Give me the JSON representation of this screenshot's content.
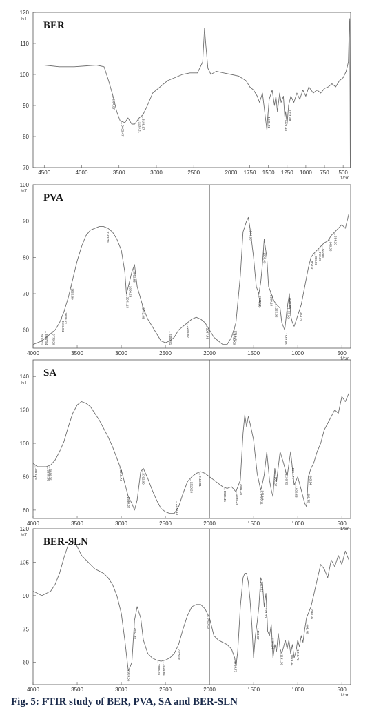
{
  "caption": "Fig. 5: FTIR study of BER, PVA, SA and BER-SLN",
  "chart_data": [
    {
      "type": "line",
      "title": "BER",
      "ylabel": "%T",
      "xunit": "1/cm",
      "xlim": [
        4650,
        400
      ],
      "ylim": [
        70,
        120
      ],
      "xticks": [
        4500,
        4000,
        3500,
        3000,
        2500,
        2000,
        1750,
        1500,
        1250,
        1000,
        750,
        500
      ],
      "yticks": [
        70,
        80,
        90,
        100,
        110,
        120
      ],
      "x": [
        4650,
        4500,
        4300,
        4100,
        3800,
        3700,
        3640,
        3580,
        3530,
        3484,
        3420,
        3380,
        3330,
        3290,
        3230,
        3180,
        3120,
        3050,
        2950,
        2850,
        2750,
        2650,
        2550,
        2450,
        2380,
        2355,
        2340,
        2310,
        2270,
        2200,
        2100,
        2000,
        1900,
        1800,
        1750,
        1700,
        1650,
        1620,
        1580,
        1540,
        1520,
        1510,
        1490,
        1450,
        1420,
        1400,
        1380,
        1350,
        1330,
        1300,
        1280,
        1270,
        1250,
        1231,
        1200,
        1160,
        1120,
        1080,
        1040,
        1000,
        960,
        900,
        850,
        800,
        750,
        700,
        650,
        600,
        550,
        500,
        460,
        430,
        420,
        412,
        405
      ],
      "values": [
        103,
        103,
        102.5,
        102.5,
        103,
        102.5,
        98,
        93,
        88,
        85,
        84.5,
        86,
        84,
        84,
        86,
        87,
        90,
        94,
        96,
        98,
        99,
        100,
        100.5,
        100.5,
        104,
        115,
        110,
        102,
        100,
        101,
        100.5,
        100,
        99.5,
        98,
        96,
        95,
        93,
        91,
        94,
        86,
        82,
        86,
        92,
        95,
        90,
        93,
        88,
        94,
        91,
        93,
        86,
        88,
        84,
        90,
        93,
        91,
        94,
        92,
        95,
        93,
        96,
        94,
        95,
        94,
        95.5,
        96,
        97,
        96,
        98,
        99,
        101,
        104,
        114,
        118,
        70
      ],
      "peak_labels": [
        {
          "x": 3584.87,
          "label": "3584.87"
        },
        {
          "x": 3465.47,
          "label": "3465.47"
        },
        {
          "x": 3233.81,
          "label": "3233.81"
        },
        {
          "x": 3188.17,
          "label": "3188.17"
        },
        {
          "x": 1505.21,
          "label": "1505.21"
        },
        {
          "x": 1277.45,
          "label": "1277.45"
        },
        {
          "x": 1231.68,
          "label": "1231.68"
        }
      ],
      "vline": 2000
    },
    {
      "type": "line",
      "title": "PVA",
      "ylabel": "%T",
      "xunit": "1/cm",
      "xlim": [
        4000,
        400
      ],
      "ylim": [
        55,
        100
      ],
      "xticks": [
        4000,
        3500,
        3000,
        2500,
        2000,
        1500,
        1000,
        500
      ],
      "yticks": [
        60,
        70,
        80,
        90,
        100
      ],
      "x": [
        4000,
        3950,
        3900,
        3850,
        3800,
        3750,
        3700,
        3650,
        3600,
        3550,
        3500,
        3450,
        3400,
        3350,
        3300,
        3250,
        3200,
        3150,
        3100,
        3050,
        3000,
        2960,
        2942,
        2920,
        2880,
        2850,
        2820,
        2750,
        2700,
        2650,
        2600,
        2550,
        2500,
        2450,
        2400,
        2350,
        2300,
        2250,
        2200,
        2150,
        2100,
        2050,
        2000,
        1950,
        1900,
        1850,
        1800,
        1750,
        1700,
        1650,
        1620,
        1580,
        1560,
        1540,
        1500,
        1470,
        1440,
        1420,
        1400,
        1380,
        1350,
        1330,
        1300,
        1270,
        1240,
        1200,
        1180,
        1147,
        1120,
        1094,
        1080,
        1060,
        1040,
        1000,
        960,
        920,
        880,
        850,
        820,
        780,
        740,
        700,
        660,
        620,
        580,
        540,
        500,
        460,
        420
      ],
      "values": [
        56,
        56.5,
        57,
        58,
        59,
        60,
        62,
        65,
        69,
        74,
        79,
        83,
        86,
        87.5,
        88,
        88.5,
        88.5,
        88,
        87,
        85,
        82,
        76,
        70,
        72,
        76,
        78,
        72,
        66,
        63,
        61,
        59,
        57,
        56.5,
        57,
        58,
        60,
        61,
        62,
        63,
        63.5,
        63,
        62,
        60,
        58,
        57,
        56,
        56,
        58,
        62,
        75,
        87,
        90,
        91,
        88,
        80,
        72,
        70,
        73,
        78,
        85,
        80,
        72,
        70,
        68,
        67,
        66,
        62,
        60,
        66,
        70,
        64,
        62,
        61,
        64,
        67,
        72,
        77,
        80,
        81,
        82,
        83,
        84,
        84.5,
        86,
        87,
        88,
        89,
        88,
        92
      ],
      "peak_labels": [
        {
          "x": 3910.61,
          "label": "3910.61"
        },
        {
          "x": 3857.54,
          "label": "3857.54"
        },
        {
          "x": 3776.36,
          "label": "3776.36"
        },
        {
          "x": 3673.84,
          "label": "3673.84"
        },
        {
          "x": 3640.53,
          "label": "3640.53"
        },
        {
          "x": 3566.09,
          "label": "3566.09"
        },
        {
          "x": 3163.26,
          "label": "3163.26"
        },
        {
          "x": 2941.13,
          "label": "2941.13"
        },
        {
          "x": 2909.53,
          "label": "2909.53"
        },
        {
          "x": 2862.88,
          "label": "2862.88"
        },
        {
          "x": 2762.98,
          "label": "2762.98"
        },
        {
          "x": 2453.91,
          "label": "2453.91"
        },
        {
          "x": 2250.8,
          "label": "2250.80"
        },
        {
          "x": 2037.48,
          "label": "2037.48"
        },
        {
          "x": 1732.09,
          "label": "1732.09"
        },
        {
          "x": 1714.72,
          "label": "1714.72"
        },
        {
          "x": 1544.98,
          "label": "1544.98"
        },
        {
          "x": 1444.68,
          "label": "1444.68"
        },
        {
          "x": 1440.11,
          "label": "1440.11"
        },
        {
          "x": 1387.63,
          "label": "1387.63"
        },
        {
          "x": 1309.18,
          "label": "1309.18"
        },
        {
          "x": 1255.06,
          "label": "1255.06"
        },
        {
          "x": 1147.8,
          "label": "1147.80"
        },
        {
          "x": 1112.9,
          "label": "1112.90"
        },
        {
          "x": 1094.58,
          "label": "1094.58"
        },
        {
          "x": 974.29,
          "label": "974.29"
        },
        {
          "x": 850.91,
          "label": "850.91"
        },
        {
          "x": 806.86,
          "label": "806.86"
        },
        {
          "x": 760.09,
          "label": "760.09"
        },
        {
          "x": 720.58,
          "label": "720.58"
        },
        {
          "x": 640.08,
          "label": "640.08"
        },
        {
          "x": 584.29,
          "label": "584.29"
        }
      ],
      "vline": 2000
    },
    {
      "type": "line",
      "title": "SA",
      "ylabel": "%T",
      "xunit": "1/cm",
      "xlim": [
        4000,
        400
      ],
      "ylim": [
        55,
        150
      ],
      "xticks": [
        4000,
        3500,
        3000,
        2500,
        2000,
        1500,
        1000,
        500
      ],
      "yticks": [
        60,
        80,
        100,
        120,
        140
      ],
      "x": [
        4000,
        3950,
        3900,
        3850,
        3800,
        3750,
        3700,
        3650,
        3600,
        3550,
        3500,
        3450,
        3400,
        3350,
        3300,
        3250,
        3200,
        3150,
        3100,
        3050,
        3000,
        2960,
        2920,
        2880,
        2850,
        2820,
        2780,
        2750,
        2700,
        2650,
        2600,
        2550,
        2500,
        2450,
        2400,
        2350,
        2300,
        2250,
        2200,
        2150,
        2100,
        2050,
        2000,
        1950,
        1900,
        1850,
        1800,
        1750,
        1700,
        1650,
        1620,
        1600,
        1580,
        1560,
        1540,
        1500,
        1460,
        1420,
        1400,
        1380,
        1350,
        1320,
        1300,
        1280,
        1260,
        1240,
        1200,
        1160,
        1120,
        1080,
        1060,
        1040,
        1000,
        960,
        920,
        900,
        880,
        850,
        820,
        780,
        740,
        700,
        660,
        620,
        580,
        540,
        500,
        460,
        420
      ],
      "values": [
        88,
        86,
        86,
        86,
        87,
        90,
        95,
        101,
        110,
        118,
        123,
        125,
        124,
        122,
        118,
        114,
        109,
        104,
        98,
        91,
        84,
        76,
        68,
        64,
        60,
        66,
        83,
        85,
        79,
        72,
        66,
        61,
        59,
        58,
        58,
        62,
        70,
        77,
        80,
        82,
        83,
        82,
        80,
        78,
        76,
        74,
        73,
        74,
        71,
        78,
        106,
        117,
        110,
        116,
        112,
        102,
        82,
        72,
        76,
        81,
        95,
        78,
        72,
        68,
        85,
        77,
        95,
        88,
        80,
        95,
        85,
        75,
        80,
        72,
        64,
        62,
        80,
        85,
        88,
        95,
        100,
        108,
        112,
        116,
        120,
        118,
        128,
        125,
        130
      ],
      "peak_labels": [
        {
          "x": 3976.75,
          "label": "3976.75"
        },
        {
          "x": 3838.06,
          "label": "3838.06"
        },
        {
          "x": 3816.25,
          "label": "3816.25"
        },
        {
          "x": 3015.74,
          "label": "3015.74"
        },
        {
          "x": 2930.02,
          "label": "2930.02"
        },
        {
          "x": 2762.09,
          "label": "2762.09"
        },
        {
          "x": 2374.16,
          "label": "2374.16"
        },
        {
          "x": 2215.26,
          "label": "2215.26"
        },
        {
          "x": 2116.81,
          "label": "2116.81"
        },
        {
          "x": 1835.45,
          "label": "1835.45"
        },
        {
          "x": 1695.28,
          "label": "1695.28"
        },
        {
          "x": 1651.03,
          "label": "1651.03"
        },
        {
          "x": 1420.11,
          "label": "1420.11"
        },
        {
          "x": 1410.44,
          "label": "1410.44"
        },
        {
          "x": 1262.37,
          "label": "1262.37"
        },
        {
          "x": 1138.75,
          "label": "1138.75"
        },
        {
          "x": 1064.71,
          "label": "1064.71"
        },
        {
          "x": 1029.63,
          "label": "1029.63"
        },
        {
          "x": 888.78,
          "label": "888.78"
        },
        {
          "x": 863.24,
          "label": "863.24"
        }
      ],
      "vline": 2000
    },
    {
      "type": "line",
      "title": "BER-SLN",
      "ylabel": "%T",
      "xunit": "1/cm",
      "xlim": [
        4000,
        400
      ],
      "ylim": [
        50,
        120
      ],
      "xticks": [
        4000,
        3500,
        3000,
        2500,
        2000,
        1500,
        1000,
        500
      ],
      "yticks": [
        60,
        75,
        90,
        105,
        120
      ],
      "x": [
        4000,
        3950,
        3900,
        3850,
        3800,
        3750,
        3700,
        3650,
        3600,
        3550,
        3500,
        3450,
        3400,
        3350,
        3300,
        3250,
        3200,
        3150,
        3100,
        3050,
        3000,
        2960,
        2920,
        2880,
        2850,
        2820,
        2780,
        2750,
        2700,
        2650,
        2600,
        2550,
        2500,
        2450,
        2400,
        2350,
        2300,
        2250,
        2200,
        2150,
        2100,
        2050,
        2000,
        1950,
        1900,
        1850,
        1800,
        1750,
        1714,
        1700,
        1680,
        1650,
        1620,
        1600,
        1580,
        1560,
        1540,
        1520,
        1500,
        1480,
        1460,
        1440,
        1420,
        1400,
        1380,
        1360,
        1340,
        1320,
        1300,
        1280,
        1260,
        1240,
        1220,
        1200,
        1180,
        1160,
        1140,
        1120,
        1100,
        1080,
        1060,
        1040,
        1020,
        1000,
        980,
        960,
        940,
        920,
        900,
        880,
        850,
        820,
        780,
        740,
        700,
        660,
        620,
        580,
        540,
        500,
        460,
        420
      ],
      "values": [
        92,
        91,
        90,
        91,
        92,
        95,
        100,
        107,
        113,
        115,
        112,
        108,
        106,
        104,
        102,
        101,
        100,
        98,
        95,
        90,
        82,
        70,
        56,
        60,
        79,
        85,
        80,
        70,
        64,
        62,
        61,
        60.5,
        61,
        62,
        64,
        68,
        75,
        81,
        85,
        86,
        86,
        84,
        80,
        72,
        70,
        69,
        68,
        66,
        62,
        58,
        65,
        85,
        98,
        100,
        100,
        96,
        88,
        77,
        62,
        72,
        78,
        85,
        98,
        96,
        85,
        91,
        74,
        72,
        77,
        62,
        68,
        65,
        73,
        66,
        64,
        67,
        70,
        66,
        70,
        64,
        68,
        62,
        65,
        70,
        67,
        72,
        69,
        75,
        80,
        82,
        85,
        90,
        97,
        104,
        102,
        98,
        106,
        103,
        108,
        104,
        110,
        106
      ],
      "peak_labels": [
        {
          "x": 2924.55,
          "label": "2924.55"
        },
        {
          "x": 2852.99,
          "label": "2852.99"
        },
        {
          "x": 2585.46,
          "label": "2585.46"
        },
        {
          "x": 2524.64,
          "label": "2524.64"
        },
        {
          "x": 2355.06,
          "label": "2355.06"
        },
        {
          "x": 2020.33,
          "label": "2020.33"
        },
        {
          "x": 1714.72,
          "label": "1714.72"
        },
        {
          "x": 1463.97,
          "label": "1463.97"
        },
        {
          "x": 1420.11,
          "label": "1420.11"
        },
        {
          "x": 1374.2,
          "label": "1374.20"
        },
        {
          "x": 1294.24,
          "label": "1294.24"
        },
        {
          "x": 1191.56,
          "label": "1191.56"
        },
        {
          "x": 1074.44,
          "label": "1074.44"
        },
        {
          "x": 1010.73,
          "label": "1010.73"
        },
        {
          "x": 905.46,
          "label": "905.46"
        },
        {
          "x": 848.95,
          "label": "848.95"
        }
      ],
      "vline": 2000
    }
  ]
}
